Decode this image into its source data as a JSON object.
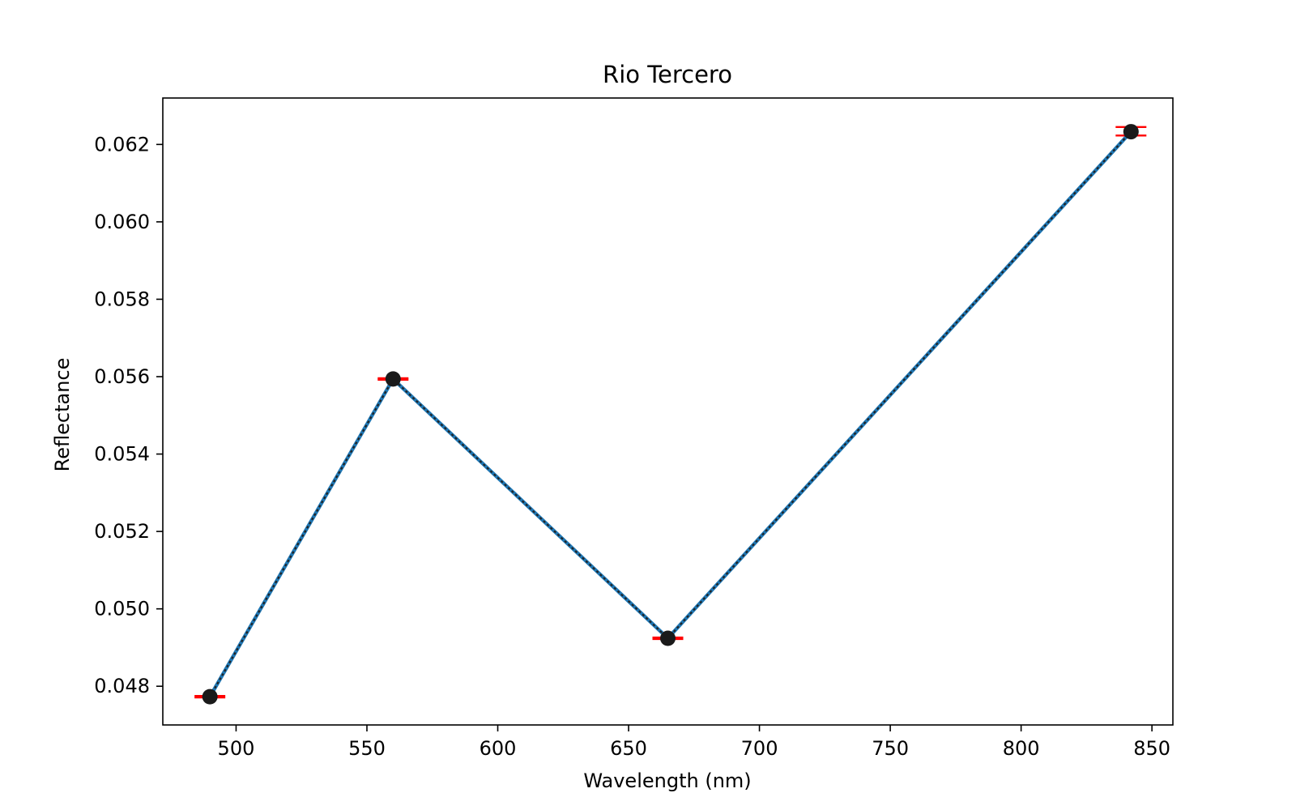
{
  "chart_data": {
    "type": "line",
    "title": "Rio Tercero",
    "xlabel": "Wavelength (nm)",
    "ylabel": "Reflectance",
    "xlim": [
      472,
      858
    ],
    "ylim": [
      0.047,
      0.0632
    ],
    "xticks": [
      500,
      550,
      600,
      650,
      700,
      750,
      800,
      850
    ],
    "xtick_labels": [
      "500",
      "550",
      "600",
      "650",
      "700",
      "750",
      "800",
      "850"
    ],
    "yticks": [
      0.048,
      0.05,
      0.052,
      0.054,
      0.056,
      0.058,
      0.06,
      0.062
    ],
    "ytick_labels": [
      "0.048",
      "0.050",
      "0.052",
      "0.054",
      "0.056",
      "0.058",
      "0.060",
      "0.062"
    ],
    "grid": false,
    "series": [
      {
        "x": [
          490,
          560,
          665,
          842
        ],
        "y": [
          0.04773,
          0.05594,
          0.04924,
          0.06233
        ],
        "err_low": [
          0.04771,
          0.05592,
          0.04922,
          0.06223
        ],
        "err_high": [
          0.04775,
          0.05596,
          0.04926,
          0.06245
        ],
        "line_color": "#1f77b4",
        "overlay_color": "#222222",
        "marker_color": "#1a1a1a",
        "errorbar_color": "#ff0000"
      }
    ]
  }
}
